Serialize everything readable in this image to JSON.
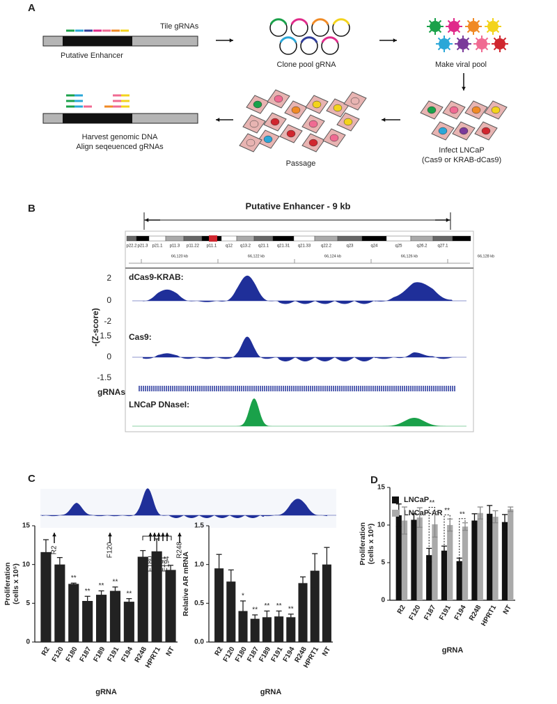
{
  "panel_a": {
    "letter": "A",
    "tile": "Tile gRNAs",
    "enhancer": "Putative Enhancer",
    "clone": "Clone pool gRNA",
    "viral": "Make viral pool",
    "infect": [
      "Infect LNCaP",
      "(Cas9 or KRAB-dCas9)"
    ],
    "passage": "Passage",
    "harvest": [
      "Harvest genomic DNA",
      "Align seqeuenced gRNAs"
    ]
  },
  "panel_b": {
    "letter": "B",
    "title": "Putative Enhancer - 9 kb",
    "bands": [
      "p22.2",
      "p21.3",
      "p21.1",
      "p11.3",
      "p11.22",
      "p11.1",
      "q12",
      "q13.2",
      "q21.1",
      "q21.31",
      "q21.33",
      "q22.2",
      "q23",
      "q24",
      "q25",
      "q26.2",
      "q27.1"
    ],
    "coordinates": [
      "66,120 kb",
      "66,122 kb",
      "66,124 kb",
      "66,126 kb",
      "66,128 kb"
    ],
    "ylabel": "-(Z-score)",
    "tracks": [
      "dCas9-KRAB:",
      "Cas9:",
      "gRNAs",
      "LNCaP DNaseI:"
    ],
    "ticks_1": [
      2,
      0,
      -2
    ],
    "ticks_2": [
      1.5,
      0,
      -1.5
    ]
  },
  "panel_c": {
    "letter": "C",
    "track_labels": [
      "R2",
      "F120",
      "F180",
      "F187",
      "F189",
      "F191",
      "F194",
      "R248"
    ]
  },
  "panel_d": {
    "letter": "D"
  },
  "chart_data": [
    {
      "type": "bar",
      "ylabel": [
        "Proliferation",
        "(cells x 10⁵)"
      ],
      "xlabel": "gRNA",
      "categories": [
        "R2",
        "F120",
        "F180",
        "F187",
        "F189",
        "F191",
        "F194",
        "R248",
        "HPRT1",
        "NT"
      ],
      "category_colors": [
        "#3a6cc0",
        "#3a6cc0",
        "#c0272d",
        "#c0272d",
        "#c0272d",
        "#c0272d",
        "#c0272d",
        "#3a6cc0",
        "#111111",
        "#111111"
      ],
      "values": [
        11.6,
        10,
        7.5,
        5.3,
        6.1,
        6.6,
        5.2,
        11,
        11.7,
        9.3
      ],
      "errors": [
        1.6,
        0.9,
        0.1,
        0.6,
        0.5,
        0.5,
        0.4,
        0.8,
        1.6,
        0.6
      ],
      "significance": [
        null,
        null,
        "**",
        "**",
        "**",
        "**",
        "**",
        null,
        null,
        null
      ],
      "color": "#222222",
      "ylim": [
        0,
        15
      ],
      "yticks": [
        0,
        5,
        10,
        15
      ]
    },
    {
      "type": "bar",
      "ylabel": [
        "Relative AR mRNA"
      ],
      "xlabel": "gRNA",
      "categories": [
        "R2",
        "F120",
        "F180",
        "F187",
        "F189",
        "F191",
        "F194",
        "R248",
        "HPRT1",
        "NT"
      ],
      "category_colors": [
        "#3a6cc0",
        "#3a6cc0",
        "#c0272d",
        "#c0272d",
        "#c0272d",
        "#c0272d",
        "#c0272d",
        "#3a6cc0",
        "#111111",
        "#111111"
      ],
      "values": [
        0.95,
        0.78,
        0.4,
        0.3,
        0.32,
        0.33,
        0.32,
        0.76,
        0.92,
        1.0
      ],
      "errors": [
        0.18,
        0.15,
        0.13,
        0.05,
        0.08,
        0.07,
        0.04,
        0.08,
        0.22,
        0.22
      ],
      "significance": [
        null,
        null,
        "*",
        "**",
        "**",
        "**",
        "**",
        null,
        null,
        null
      ],
      "color": "#222222",
      "ylim": [
        0,
        1.5
      ],
      "yticks": [
        {
          "value": 0,
          "label": "0.0"
        },
        0.5,
        {
          "value": 1,
          "label": "1.0"
        },
        1.5
      ]
    },
    {
      "type": "grouped_bar",
      "ylabel": [
        "Proliferation",
        "(cells x 10⁵)"
      ],
      "xlabel": "gRNA",
      "categories": [
        "R2",
        "F120",
        "F187",
        "F191",
        "F194",
        "R248",
        "HPRT1",
        "NT"
      ],
      "category_colors": [
        "#3a6cc0",
        "#3a6cc0",
        "#c0272d",
        "#c0272d",
        "#c0272d",
        "#3a6cc0",
        "#111111",
        "#111111"
      ],
      "series": [
        {
          "name": "LNCaP",
          "color": "#111111",
          "values": [
            11.3,
            10.7,
            6.0,
            6.6,
            5.2,
            10.6,
            11.5,
            10.4
          ],
          "errors": [
            1.5,
            0.8,
            0.9,
            0.6,
            0.4,
            0.9,
            1.1,
            1.0
          ]
        },
        {
          "name": "LNCaP-AR",
          "color": "#aaaaaa",
          "values": [
            10.6,
            11.0,
            10.1,
            10.0,
            9.8,
            11.6,
            11.1,
            12.1
          ],
          "errors": [
            1.8,
            1.3,
            1.7,
            0.8,
            0.5,
            0.8,
            0.8,
            0.3
          ]
        }
      ],
      "significance": [
        null,
        null,
        "**",
        "**",
        "**",
        null,
        null,
        null
      ],
      "ylim": [
        0,
        15
      ],
      "yticks": [
        0,
        5,
        10,
        15
      ]
    }
  ]
}
